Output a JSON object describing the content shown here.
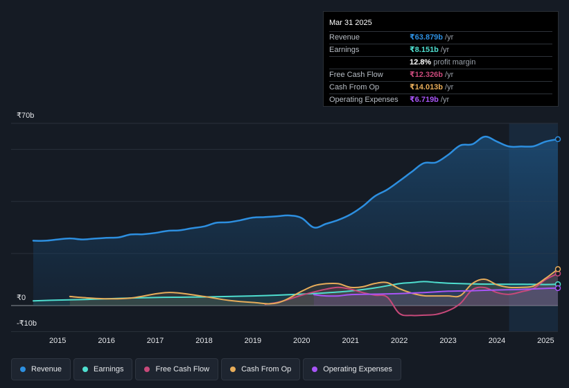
{
  "chart_data": {
    "type": "line",
    "title": "",
    "ylim": [
      -10,
      70
    ],
    "y_tick_labels": [
      "₹70b",
      "₹0",
      "-₹10b"
    ],
    "x_tick_labels": [
      "2015",
      "2016",
      "2017",
      "2018",
      "2019",
      "2020",
      "2021",
      "2022",
      "2023",
      "2024",
      "2025"
    ],
    "forecast_shaded_from": 2024.25,
    "series": [
      {
        "name": "Revenue",
        "color": "#2d8fe0",
        "x": [
          2014.5,
          2014.75,
          2015.0,
          2015.25,
          2015.5,
          2015.75,
          2016.0,
          2016.25,
          2016.5,
          2016.75,
          2017.0,
          2017.25,
          2017.5,
          2017.75,
          2018.0,
          2018.25,
          2018.5,
          2018.75,
          2019.0,
          2019.25,
          2019.5,
          2019.75,
          2020.0,
          2020.25,
          2020.5,
          2020.75,
          2021.0,
          2021.25,
          2021.5,
          2021.75,
          2022.0,
          2022.25,
          2022.5,
          2022.75,
          2023.0,
          2023.25,
          2023.5,
          2023.75,
          2024.0,
          2024.25,
          2024.5,
          2024.75,
          2025.0,
          2025.25
        ],
        "values": [
          24.9,
          24.9,
          25.4,
          25.8,
          25.4,
          25.7,
          26.0,
          26.2,
          27.3,
          27.4,
          27.9,
          28.7,
          28.9,
          29.7,
          30.4,
          31.8,
          32.0,
          32.8,
          33.8,
          34.0,
          34.3,
          34.6,
          33.6,
          30.0,
          31.4,
          32.9,
          35.0,
          38.1,
          42.0,
          44.5,
          47.8,
          51.3,
          54.7,
          55.0,
          57.9,
          61.5,
          62.0,
          64.9,
          63.0,
          61.1,
          61.1,
          61.2,
          63.0,
          63.9
        ]
      },
      {
        "name": "Earnings",
        "color": "#4fdfd0",
        "x": [
          2014.5,
          2015.0,
          2015.5,
          2016.0,
          2016.5,
          2017.0,
          2017.5,
          2018.0,
          2018.5,
          2019.0,
          2019.5,
          2020.0,
          2020.5,
          2021.0,
          2021.5,
          2022.0,
          2022.25,
          2022.5,
          2022.75,
          2023.0,
          2023.5,
          2024.0,
          2024.5,
          2025.0,
          2025.25
        ],
        "values": [
          1.8,
          2.1,
          2.3,
          2.6,
          2.9,
          3.1,
          3.2,
          3.3,
          3.5,
          3.7,
          4.0,
          4.4,
          4.9,
          5.6,
          6.8,
          8.4,
          8.8,
          9.2,
          8.9,
          8.6,
          8.3,
          8.2,
          8.2,
          8.1,
          8.2
        ]
      },
      {
        "name": "Free Cash Flow",
        "color": "#c8497a",
        "x": [
          2019.25,
          2019.5,
          2019.75,
          2020.0,
          2020.25,
          2020.5,
          2020.75,
          2021.0,
          2021.25,
          2021.5,
          2021.75,
          2022.0,
          2022.25,
          2022.5,
          2022.75,
          2023.0,
          2023.25,
          2023.5,
          2023.75,
          2024.0,
          2024.25,
          2024.5,
          2024.75,
          2025.0,
          2025.25
        ],
        "values": [
          0.5,
          1.2,
          2.5,
          4.0,
          5.2,
          6.3,
          7.0,
          6.3,
          5.0,
          4.0,
          3.3,
          -3.0,
          -3.8,
          -3.7,
          -3.4,
          -2.0,
          0.8,
          6.1,
          6.9,
          5.0,
          4.3,
          5.3,
          6.6,
          10.0,
          12.3
        ]
      },
      {
        "name": "Cash From Op",
        "color": "#e8ad5a",
        "x": [
          2015.25,
          2015.5,
          2016.0,
          2016.5,
          2017.0,
          2017.25,
          2017.5,
          2018.0,
          2018.5,
          2019.0,
          2019.5,
          2020.0,
          2020.25,
          2020.5,
          2020.75,
          2021.0,
          2021.25,
          2021.5,
          2021.75,
          2022.0,
          2022.25,
          2022.5,
          2022.75,
          2023.0,
          2023.25,
          2023.5,
          2023.75,
          2024.0,
          2024.25,
          2024.5,
          2024.75,
          2025.0,
          2025.25
        ],
        "values": [
          3.5,
          3.1,
          2.6,
          2.9,
          4.5,
          5.0,
          4.8,
          3.5,
          2.0,
          1.2,
          1.0,
          5.5,
          7.6,
          8.4,
          8.4,
          7.0,
          7.2,
          8.5,
          8.8,
          6.5,
          4.8,
          3.8,
          3.7,
          3.7,
          3.8,
          8.5,
          10.1,
          8.0,
          7.0,
          7.0,
          7.5,
          10.5,
          14.0
        ]
      },
      {
        "name": "Operating Expenses",
        "color": "#a855f7",
        "x": [
          2020.25,
          2020.5,
          2020.75,
          2021.0,
          2021.5,
          2022.0,
          2022.5,
          2023.0,
          2023.5,
          2024.0,
          2024.5,
          2025.0,
          2025.25
        ],
        "values": [
          4.2,
          3.7,
          3.7,
          4.2,
          4.4,
          4.6,
          5.0,
          5.5,
          5.7,
          6.0,
          6.2,
          6.6,
          6.7
        ]
      }
    ]
  },
  "tooltip": {
    "date": "Mar 31 2025",
    "rows": [
      {
        "label": "Revenue",
        "value": "₹63.879b",
        "unit": "/yr",
        "color": "#2d8fe0"
      },
      {
        "label": "Earnings",
        "value": "₹8.151b",
        "unit": "/yr",
        "color": "#4fdfd0"
      },
      {
        "label": "",
        "value": "12.8%",
        "unit": "profit margin",
        "color": "#ffffff"
      },
      {
        "label": "Free Cash Flow",
        "value": "₹12.326b",
        "unit": "/yr",
        "color": "#c8497a"
      },
      {
        "label": "Cash From Op",
        "value": "₹14.013b",
        "unit": "/yr",
        "color": "#e8ad5a"
      },
      {
        "label": "Operating Expenses",
        "value": "₹6.719b",
        "unit": "/yr",
        "color": "#a855f7"
      }
    ]
  },
  "legend": [
    {
      "label": "Revenue",
      "color": "#2d8fe0"
    },
    {
      "label": "Earnings",
      "color": "#4fdfd0"
    },
    {
      "label": "Free Cash Flow",
      "color": "#c8497a"
    },
    {
      "label": "Cash From Op",
      "color": "#e8ad5a"
    },
    {
      "label": "Operating Expenses",
      "color": "#a855f7"
    }
  ]
}
